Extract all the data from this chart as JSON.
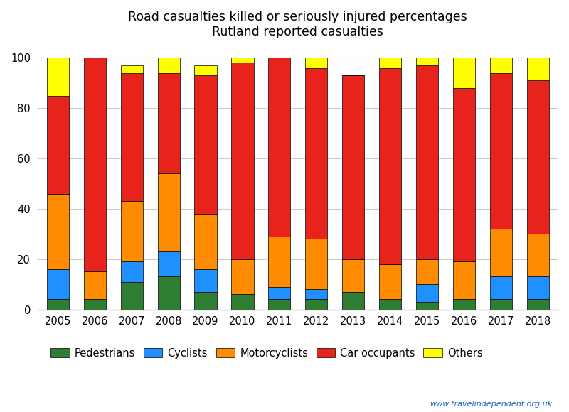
{
  "years": [
    2005,
    2006,
    2007,
    2008,
    2009,
    2010,
    2011,
    2012,
    2013,
    2014,
    2015,
    2016,
    2017,
    2018
  ],
  "pedestrians": [
    4,
    4,
    11,
    13,
    7,
    6,
    4,
    4,
    7,
    4,
    3,
    4,
    4,
    4
  ],
  "cyclists": [
    12,
    0,
    8,
    10,
    9,
    0,
    5,
    4,
    0,
    0,
    7,
    0,
    9,
    9
  ],
  "motorcyclists": [
    30,
    11,
    24,
    31,
    22,
    14,
    20,
    20,
    13,
    14,
    10,
    15,
    19,
    17
  ],
  "car_occupants": [
    39,
    85,
    51,
    40,
    55,
    78,
    71,
    68,
    73,
    78,
    77,
    69,
    62,
    61
  ],
  "others": [
    15,
    0,
    3,
    6,
    4,
    2,
    0,
    4,
    0,
    4,
    3,
    12,
    6,
    9
  ],
  "title_line1": "Road casualties killed or seriously injured percentages",
  "title_line2": "Rutland reported casualties",
  "legend_labels": [
    "Pedestrians",
    "Cyclists",
    "Motorcyclists",
    "Car occupants",
    "Others"
  ],
  "colors": [
    "#2e7d32",
    "#1e90ff",
    "#ff8c00",
    "#e8231c",
    "#ffff00"
  ],
  "ylim": [
    0,
    105
  ],
  "yticks": [
    0,
    20,
    40,
    60,
    80,
    100
  ],
  "watermark": "www.travelindependent.org.uk",
  "bar_width": 0.6,
  "bg_color": "#ffffff"
}
